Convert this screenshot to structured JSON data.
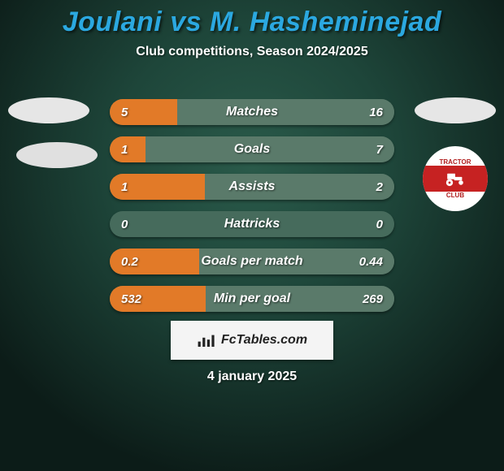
{
  "title": "Joulani vs M. Hasheminejad",
  "subtitle": "Club competitions, Season 2024/2025",
  "title_color": "#2ba8e0",
  "colors": {
    "left_fill": "#e27a28",
    "right_fill": "#5a7a6a",
    "neutral_fill": "#466b5c",
    "track": "#466b5c"
  },
  "bars": [
    {
      "label": "Matches",
      "left_val": "5",
      "right_val": "16",
      "left_pct": 23.8,
      "right_pct": 76.2,
      "neutral": false
    },
    {
      "label": "Goals",
      "left_val": "1",
      "right_val": "7",
      "left_pct": 12.5,
      "right_pct": 87.5,
      "neutral": false
    },
    {
      "label": "Assists",
      "left_val": "1",
      "right_val": "2",
      "left_pct": 33.3,
      "right_pct": 66.7,
      "neutral": false
    },
    {
      "label": "Hattricks",
      "left_val": "0",
      "right_val": "0",
      "left_pct": 0,
      "right_pct": 0,
      "neutral": true
    },
    {
      "label": "Goals per match",
      "left_val": "0.2",
      "right_val": "0.44",
      "left_pct": 31.3,
      "right_pct": 68.7,
      "neutral": false
    },
    {
      "label": "Min per goal",
      "left_val": "532",
      "right_val": "269",
      "left_pct": 33.6,
      "right_pct": 66.4,
      "neutral": false
    }
  ],
  "club_badge": {
    "top_text": "TRACTOR",
    "bot_text": "CLUB"
  },
  "footer_brand": "FcTables.com",
  "date": "4 january 2025"
}
